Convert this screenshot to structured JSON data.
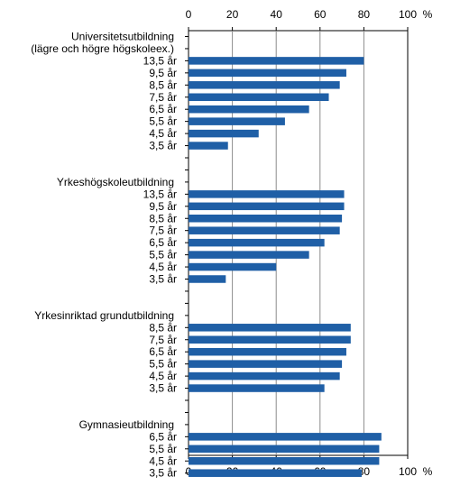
{
  "chart_data": {
    "type": "bar",
    "orientation": "horizontal",
    "xlim": [
      0,
      100
    ],
    "x_ticks": [
      "0",
      "20",
      "40",
      "60",
      "80",
      "100"
    ],
    "unit_label": "%",
    "grid": true,
    "bar_color": "#1f5fa6",
    "groups": [
      {
        "title_lines": [
          "Universitetsutbildning",
          "(lägre och högre högskoleex.)"
        ],
        "categories": [
          "13,5 år",
          "9,5 år",
          "8,5 år",
          "7,5 år",
          "6,5 år",
          "5,5 år",
          "4,5 år",
          "3,5 år"
        ],
        "values": [
          80,
          72,
          69,
          64,
          55,
          44,
          32,
          18
        ]
      },
      {
        "title_lines": [
          "Yrkeshögskoleutbildning"
        ],
        "categories": [
          "13,5 år",
          "9,5 år",
          "8,5 år",
          "7,5 år",
          "6,5 år",
          "5,5 år",
          "4,5 år",
          "3,5 år"
        ],
        "values": [
          71,
          71,
          70,
          69,
          62,
          55,
          40,
          17
        ]
      },
      {
        "title_lines": [
          "Yrkesinriktad grundutbildning"
        ],
        "categories": [
          "8,5 år",
          "7,5 år",
          "6,5 år",
          "5,5 år",
          "4,5 år",
          "3,5 år"
        ],
        "values": [
          74,
          74,
          72,
          70,
          69,
          62
        ]
      },
      {
        "title_lines": [
          "Gymnasieutbildning"
        ],
        "categories": [
          "6,5 år",
          "5,5 år",
          "4,5 år",
          "3,5 år"
        ],
        "values": [
          88,
          87,
          87,
          79
        ]
      }
    ]
  }
}
